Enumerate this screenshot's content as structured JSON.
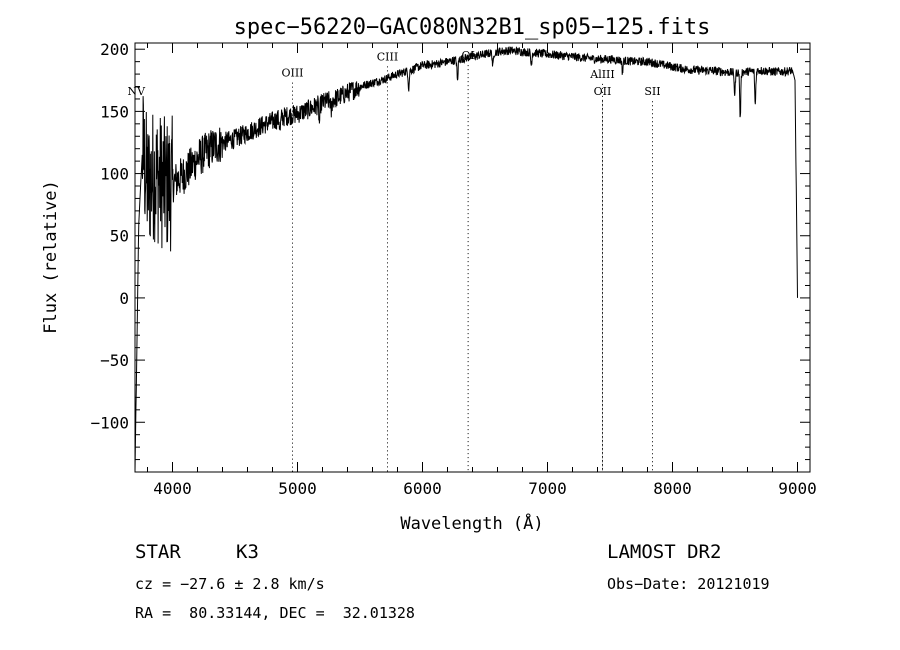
{
  "chart_data": {
    "type": "line",
    "title": "spec−56220−GAC080N32B1_sp05−125.fits",
    "xlabel": "Wavelength (Å)",
    "ylabel": "Flux (relative)",
    "xlim": [
      3700,
      9100
    ],
    "ylim": [
      -140,
      205
    ],
    "x_ticks": [
      4000,
      5000,
      6000,
      7000,
      8000,
      9000
    ],
    "y_ticks": [
      -100,
      -50,
      0,
      50,
      100,
      150,
      200
    ],
    "x_tick_labels": [
      "4000",
      "5000",
      "6000",
      "7000",
      "8000",
      "9000"
    ],
    "y_tick_labels": [
      "−100",
      "−50",
      "0",
      "50",
      "100",
      "150",
      "200"
    ],
    "grid": false,
    "line_color": "#000000",
    "series": [
      {
        "x": [
          3700,
          3730,
          3760,
          3800,
          3850,
          3900,
          3950,
          4000,
          4100,
          4200,
          4300,
          4400,
          4500,
          4600,
          4700,
          4800,
          4900,
          5000,
          5100,
          5200,
          5300,
          5400,
          5500,
          5600,
          5700,
          5800,
          5900,
          6000,
          6100,
          6200,
          6300,
          6400,
          6500,
          6600,
          6700,
          6800,
          6900,
          7000,
          7100,
          7200,
          7300,
          7400,
          7500,
          7600,
          7700,
          7800,
          7900,
          8000,
          8100,
          8200,
          8300,
          8400,
          8500,
          8600,
          8700,
          8800,
          8900,
          8960,
          8980,
          9000
        ],
        "y": [
          -140,
          60,
          120,
          90,
          100,
          95,
          90,
          92,
          100,
          112,
          120,
          125,
          128,
          133,
          138,
          142,
          146,
          148,
          152,
          157,
          160,
          165,
          170,
          173,
          176,
          180,
          183,
          187,
          188,
          190,
          192,
          194,
          196,
          198,
          199,
          198,
          197,
          196,
          195,
          194,
          193,
          192,
          192,
          191,
          190,
          190,
          188,
          186,
          184,
          183,
          183,
          182,
          181,
          182,
          183,
          182,
          182,
          183,
          175,
          0
        ]
      }
    ],
    "absorption_dips": [
      {
        "x": 4861,
        "depth": 10
      },
      {
        "x": 5175,
        "depth": 15
      },
      {
        "x": 5270,
        "depth": 10
      },
      {
        "x": 5890,
        "depth": 14
      },
      {
        "x": 6280,
        "depth": 18
      },
      {
        "x": 6563,
        "depth": 12
      },
      {
        "x": 6870,
        "depth": 10
      },
      {
        "x": 7600,
        "depth": 10
      },
      {
        "x": 8498,
        "depth": 18
      },
      {
        "x": 8542,
        "depth": 38
      },
      {
        "x": 8662,
        "depth": 28
      }
    ],
    "line_markers": [
      {
        "label": "NV",
        "x": 3710,
        "label_y": 163
      },
      {
        "label": "OIII",
        "x": 4960,
        "label_y": 178
      },
      {
        "label": "CIII",
        "x": 5720,
        "label_y": 191
      },
      {
        "label": "OI",
        "x": 6365,
        "label_y": 192
      },
      {
        "label": "AlIII",
        "x": 7440,
        "label_y": 177
      },
      {
        "label": "OII",
        "x": 7440,
        "label_y": 163
      },
      {
        "label": "SII",
        "x": 7840,
        "label_y": 163
      }
    ]
  },
  "info": {
    "object_class": "STAR",
    "subclass": "K3",
    "survey": "LAMOST DR2",
    "redshift_line": "cz = −27.6 ± 2.8 km/s",
    "obs_date_line": "Obs−Date: 20121019",
    "coords_line": "RA =  80.33144, DEC =  32.01328"
  }
}
